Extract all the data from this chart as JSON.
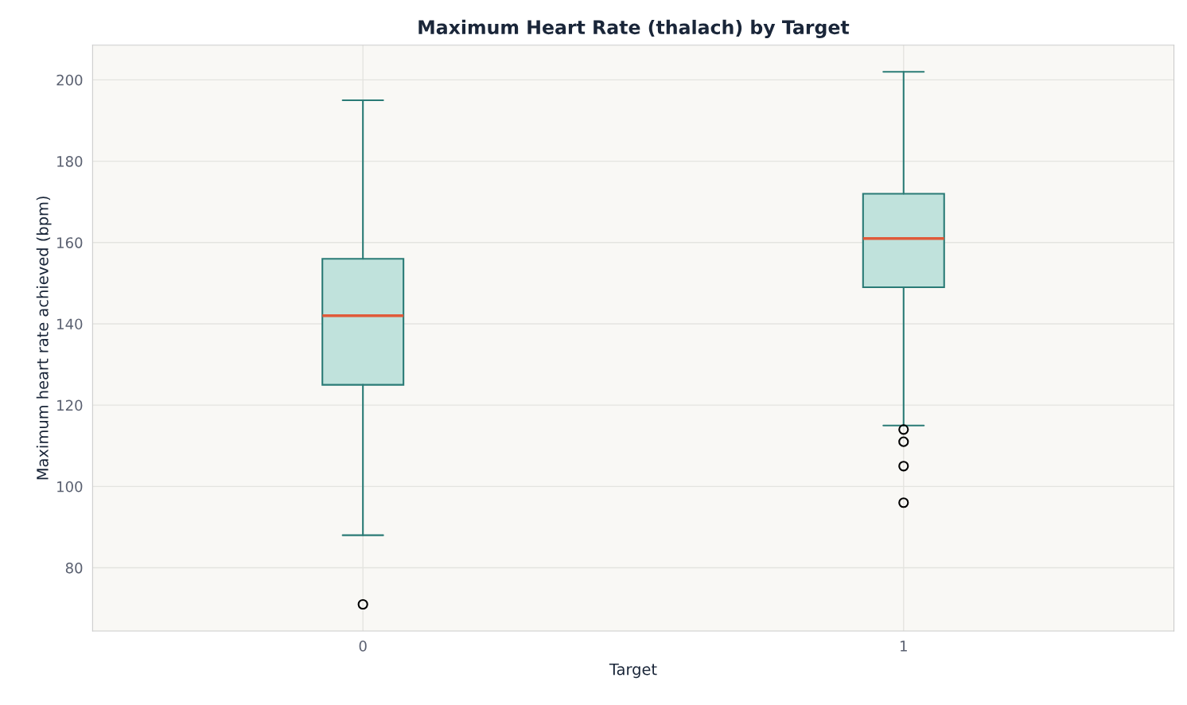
{
  "chart_data": {
    "type": "box",
    "title": "Maximum Heart Rate (thalach) by Target",
    "xlabel": "Target",
    "ylabel": "Maximum heart rate achieved (bpm)",
    "categories": [
      "0",
      "1"
    ],
    "series": [
      {
        "color": "#2a7b76",
        "boxes": [
          {
            "low": 88,
            "q1": 125,
            "median": 142,
            "q3": 156,
            "high": 195,
            "outliers": [
              71
            ]
          },
          {
            "low": 115,
            "q1": 149,
            "median": 161,
            "q3": 172,
            "high": 202,
            "outliers": [
              114,
              111,
              105,
              96
            ]
          }
        ]
      }
    ],
    "ylim": [
      64.45,
      208.55
    ],
    "yticks": [
      80,
      100,
      120,
      140,
      160,
      180,
      200
    ],
    "grid": true
  }
}
